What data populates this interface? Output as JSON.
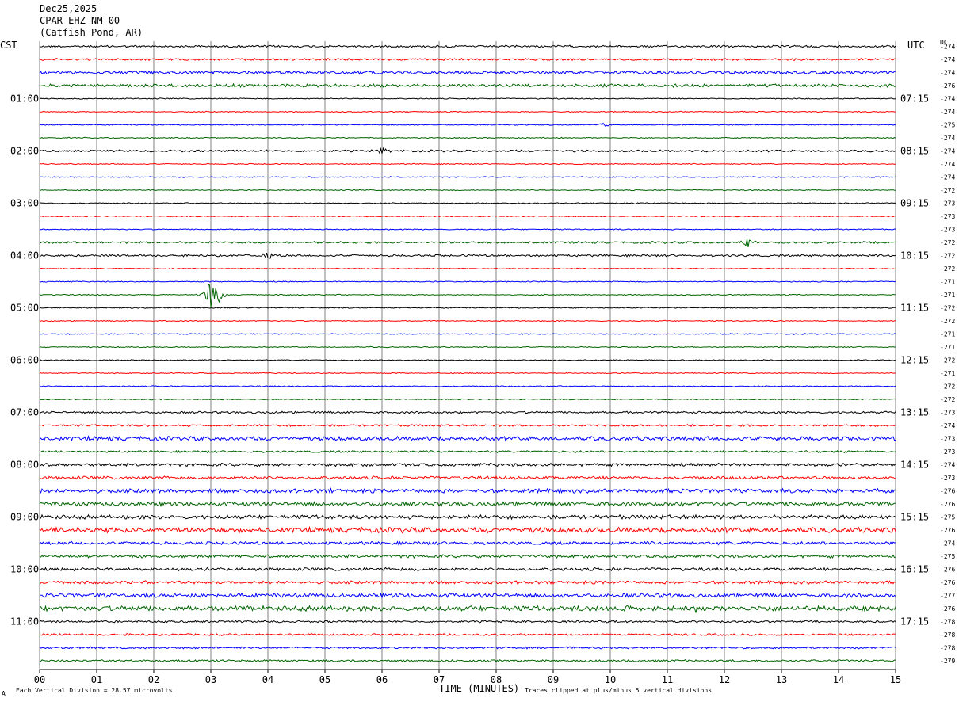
{
  "header": {
    "date": "Dec25,2025",
    "station": "CPAR EHZ NM 00",
    "location": "(Catfish Pond, AR)"
  },
  "left_axis_label": "CST",
  "right_axis_label": "UTC",
  "dc_label": "DC",
  "footer": {
    "division": "Each Vertical Division =   28.57 microvolts",
    "xlabel": "TIME (MINUTES)",
    "clip": "Traces clipped at plus/minus 5 vertical divisions",
    "corner": "A"
  },
  "colors": {
    "black": "#000000",
    "red": "#ff0000",
    "blue": "#0000ff",
    "green": "#006400",
    "grid": "#808080"
  },
  "chart_data": {
    "type": "line",
    "title": "",
    "xlabel": "TIME (MINUTES)",
    "xlim": [
      0,
      15
    ],
    "x_ticks": [
      "00",
      "01",
      "02",
      "03",
      "04",
      "05",
      "06",
      "07",
      "08",
      "09",
      "10",
      "11",
      "12",
      "13",
      "14",
      "15"
    ],
    "cst_hour_labels": [
      "01:00",
      "02:00",
      "03:00",
      "04:00",
      "05:00",
      "06:00",
      "07:00",
      "08:00",
      "09:00",
      "10:00",
      "11:00"
    ],
    "utc_hour_labels": [
      "07:15",
      "08:15",
      "09:15",
      "10:15",
      "11:15",
      "12:15",
      "13:15",
      "14:15",
      "15:15",
      "16:15",
      "17:15"
    ],
    "trace_color_cycle": [
      "black",
      "red",
      "blue",
      "green"
    ],
    "dc_offsets": [
      -274,
      -274,
      -274,
      -276,
      -274,
      -274,
      -275,
      -274,
      -274,
      -274,
      -274,
      -272,
      -273,
      -273,
      -273,
      -272,
      -272,
      -272,
      -271,
      -271,
      -272,
      -272,
      -271,
      -271,
      -272,
      -271,
      -272,
      -272,
      -273,
      -274,
      -273,
      -273,
      -274,
      -273,
      -276,
      -276,
      -275,
      -276,
      -274,
      -275,
      -276,
      -276,
      -277,
      -276,
      -278,
      -278,
      -278,
      -279
    ],
    "trace_noise_level": [
      2,
      2,
      3,
      3,
      1,
      1,
      1,
      1,
      2,
      1,
      1,
      1,
      1,
      1,
      1,
      2,
      2,
      1,
      1,
      1,
      1,
      1,
      1,
      1,
      1,
      1,
      1,
      1,
      2,
      2,
      4,
      2,
      3,
      3,
      4,
      4,
      4,
      5,
      3,
      3,
      3,
      3,
      4,
      5,
      2,
      2,
      2,
      2
    ],
    "events": [
      {
        "trace": 8,
        "minute": 6.0,
        "amplitude": 6
      },
      {
        "trace": 15,
        "minute": 12.4,
        "amplitude": 8
      },
      {
        "trace": 16,
        "minute": 4.0,
        "amplitude": 4
      },
      {
        "trace": 19,
        "minute": 3.0,
        "amplitude": 30
      },
      {
        "trace": 19,
        "minute": 3.1,
        "amplitude": 18
      },
      {
        "trace": 6,
        "minute": 9.9,
        "amplitude": 4
      },
      {
        "trace": 43,
        "minute": 11.5,
        "amplitude": 6
      },
      {
        "trace": 43,
        "minute": 10.3,
        "amplitude": 5
      }
    ],
    "grid": true
  }
}
